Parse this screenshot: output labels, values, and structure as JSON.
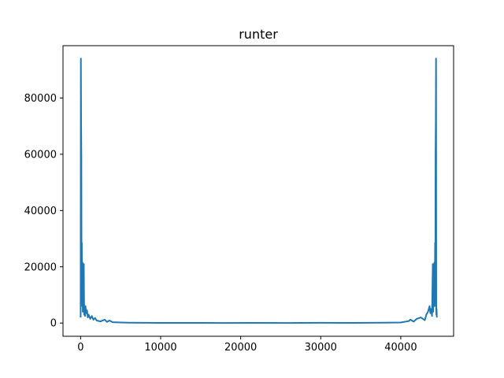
{
  "chart_data": {
    "type": "line",
    "title": "runter",
    "xlabel": "",
    "ylabel": "",
    "xlim": [
      -2200,
      46600
    ],
    "ylim": [
      -4700,
      98600
    ],
    "xticks": [
      0,
      10000,
      20000,
      30000,
      40000
    ],
    "yticks": [
      0,
      20000,
      40000,
      60000,
      80000
    ],
    "grid": false,
    "legend": "none",
    "series": [
      {
        "color": "#1f77b4",
        "x": [
          0,
          30,
          60,
          90,
          120,
          150,
          180,
          210,
          240,
          270,
          300,
          350,
          400,
          450,
          500,
          550,
          600,
          700,
          800,
          900,
          1000,
          1200,
          1400,
          1600,
          1800,
          2000,
          2500,
          3000,
          3300,
          3600,
          4000,
          5000,
          6000,
          8000,
          10000,
          14000,
          18000,
          22000,
          26000,
          30000,
          34000,
          38000,
          40000,
          41000,
          41200,
          41600,
          42000,
          42500,
          43000,
          43200,
          43400,
          43600,
          43700,
          43800,
          43900,
          44000,
          44050,
          44100,
          44150,
          44200,
          44230,
          44260,
          44290,
          44320,
          44350,
          44380,
          44410,
          44440,
          44470,
          44500
        ],
        "y": [
          2000,
          94000,
          71000,
          60000,
          9000,
          28500,
          12000,
          6000,
          21500,
          4000,
          10000,
          7000,
          21000,
          3000,
          5000,
          2500,
          6000,
          3500,
          4500,
          2000,
          3000,
          1500,
          2500,
          1200,
          1800,
          900,
          600,
          1200,
          400,
          900,
          300,
          200,
          150,
          100,
          50,
          60,
          40,
          50,
          40,
          80,
          60,
          120,
          200,
          700,
          1200,
          500,
          1500,
          2000,
          1000,
          3000,
          4000,
          6000,
          3500,
          5000,
          2500,
          21000,
          4000,
          10000,
          7000,
          21500,
          6000,
          12000,
          28500,
          9000,
          60000,
          71000,
          94000,
          3000,
          5000,
          2000
        ]
      }
    ]
  }
}
